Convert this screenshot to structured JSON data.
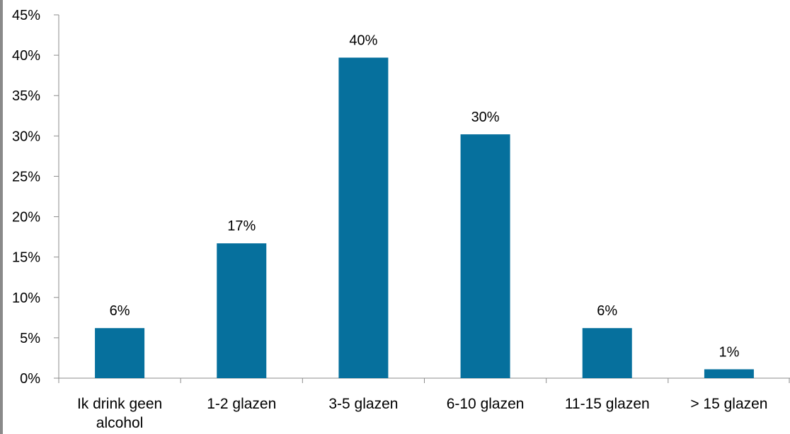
{
  "chart_data": {
    "type": "bar",
    "categories": [
      "Ik drink geen alcohol",
      "1-2 glazen",
      "3-5 glazen",
      "6-10 glazen",
      "11-15 glazen",
      "> 15 glazen"
    ],
    "category_lines": [
      [
        "Ik drink geen",
        "alcohol"
      ],
      [
        "1-2 glazen"
      ],
      [
        "3-5 glazen"
      ],
      [
        "6-10 glazen"
      ],
      [
        "11-15 glazen"
      ],
      [
        "> 15 glazen"
      ]
    ],
    "values": [
      6.2,
      16.7,
      39.7,
      30.2,
      6.2,
      1.1
    ],
    "data_labels": [
      "6%",
      "17%",
      "40%",
      "30%",
      "6%",
      "1%"
    ],
    "y_ticks": [
      "0%",
      "5%",
      "10%",
      "15%",
      "20%",
      "25%",
      "30%",
      "35%",
      "40%",
      "45%"
    ],
    "ylim": [
      0,
      45
    ],
    "title": "",
    "xlabel": "",
    "ylabel": "",
    "grid": false,
    "legend": "none",
    "bar_color": "#06709d"
  }
}
